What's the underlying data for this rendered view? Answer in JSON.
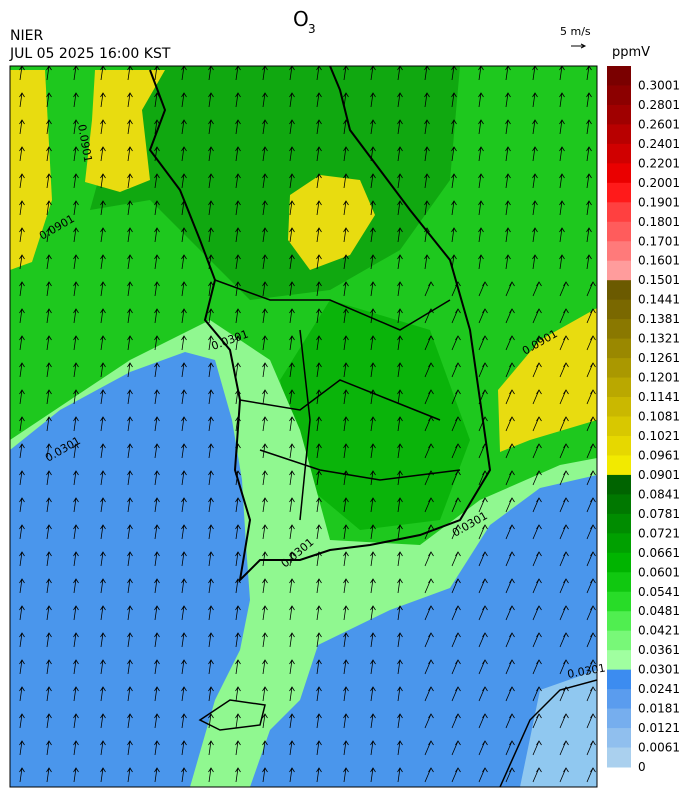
{
  "header": {
    "agency": "NIER",
    "datetime": "JUL 05 2025 16:00 KST",
    "title": {
      "main": "O",
      "subscript": "3"
    },
    "wind_scale": "5 m/s",
    "unit": "ppmV"
  },
  "map": {
    "contour_labels": [
      "0.0901",
      "0.0901",
      "0.0901",
      "0.0301",
      "0.0301",
      "0.0301",
      "0.0301",
      "0.0301"
    ]
  },
  "colorbar": {
    "levels": [
      {
        "label": "0.3001",
        "color": "#7a0000"
      },
      {
        "label": "0.2801",
        "color": "#8c0000"
      },
      {
        "label": "0.2601",
        "color": "#a00000"
      },
      {
        "label": "0.2401",
        "color": "#b80000"
      },
      {
        "label": "0.2201",
        "color": "#d00000"
      },
      {
        "label": "0.2001",
        "color": "#ea0000"
      },
      {
        "label": "0.1901",
        "color": "#ff1a1a"
      },
      {
        "label": "0.1801",
        "color": "#ff4040"
      },
      {
        "label": "0.1701",
        "color": "#ff5c5c"
      },
      {
        "label": "0.1601",
        "color": "#ff7a7a"
      },
      {
        "label": "0.1501",
        "color": "#ff9c9c"
      },
      {
        "label": "0.1441",
        "color": "#6b5a00"
      },
      {
        "label": "0.1381",
        "color": "#7a6800"
      },
      {
        "label": "0.1321",
        "color": "#8a7800"
      },
      {
        "label": "0.1261",
        "color": "#9a8800"
      },
      {
        "label": "0.1201",
        "color": "#aa9800"
      },
      {
        "label": "0.1141",
        "color": "#baa800"
      },
      {
        "label": "0.1081",
        "color": "#cab800"
      },
      {
        "label": "0.1021",
        "color": "#d8c800"
      },
      {
        "label": "0.0961",
        "color": "#e6d800"
      },
      {
        "label": "0.0901",
        "color": "#f2ea00"
      },
      {
        "label": "0.0841",
        "color": "#006400"
      },
      {
        "label": "0.0781",
        "color": "#007800"
      },
      {
        "label": "0.0721",
        "color": "#008c00"
      },
      {
        "label": "0.0661",
        "color": "#00a000"
      },
      {
        "label": "0.0601",
        "color": "#00b400"
      },
      {
        "label": "0.0541",
        "color": "#10c810"
      },
      {
        "label": "0.0481",
        "color": "#28dc28"
      },
      {
        "label": "0.0421",
        "color": "#50ee50"
      },
      {
        "label": "0.0361",
        "color": "#78f878"
      },
      {
        "label": "0.0301",
        "color": "#a0ffa0"
      },
      {
        "label": "0.0241",
        "color": "#3c8cf0"
      },
      {
        "label": "0.0181",
        "color": "#5a9cee"
      },
      {
        "label": "0.0121",
        "color": "#76aeee"
      },
      {
        "label": "0.0061",
        "color": "#90bfee"
      },
      {
        "label": "0",
        "color": "#aad0ee"
      }
    ]
  }
}
